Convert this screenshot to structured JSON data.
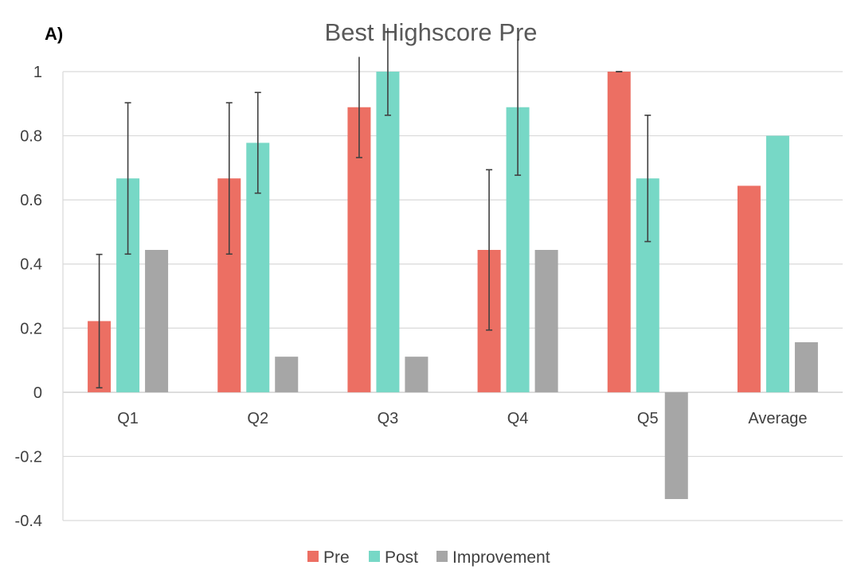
{
  "panel_label": "A)",
  "chart_data": {
    "type": "bar",
    "title": "Best Highscore Pre",
    "xlabel": "",
    "ylabel": "",
    "ylim": [
      -0.4,
      1
    ],
    "yticks": [
      -0.4,
      -0.2,
      0,
      0.2,
      0.4,
      0.6,
      0.8,
      1
    ],
    "ytick_labels": [
      "-0.4",
      "-0.2",
      "0",
      "0.2",
      "0.4",
      "0.6",
      "0.8",
      "1"
    ],
    "categories": [
      "Q1",
      "Q2",
      "Q3",
      "Q4",
      "Q5",
      "Average"
    ],
    "grid": true,
    "legend_position": "bottom",
    "series": [
      {
        "name": "Pre",
        "color": "#EC6F63",
        "values": [
          0.222,
          0.667,
          0.889,
          0.444,
          1.0,
          0.644
        ],
        "error": [
          0.208,
          0.236,
          0.157,
          0.25,
          0,
          null
        ]
      },
      {
        "name": "Post",
        "color": "#77D8C6",
        "values": [
          0.667,
          0.778,
          1.0,
          0.889,
          0.667,
          0.8
        ],
        "error": [
          0.236,
          0.157,
          0.136,
          0.212,
          0.197,
          null
        ]
      },
      {
        "name": "Improvement",
        "color": "#A6A6A6",
        "values": [
          0.444,
          0.111,
          0.111,
          0.444,
          -0.333,
          0.156
        ],
        "error": [
          null,
          null,
          null,
          null,
          null,
          null
        ]
      }
    ]
  }
}
